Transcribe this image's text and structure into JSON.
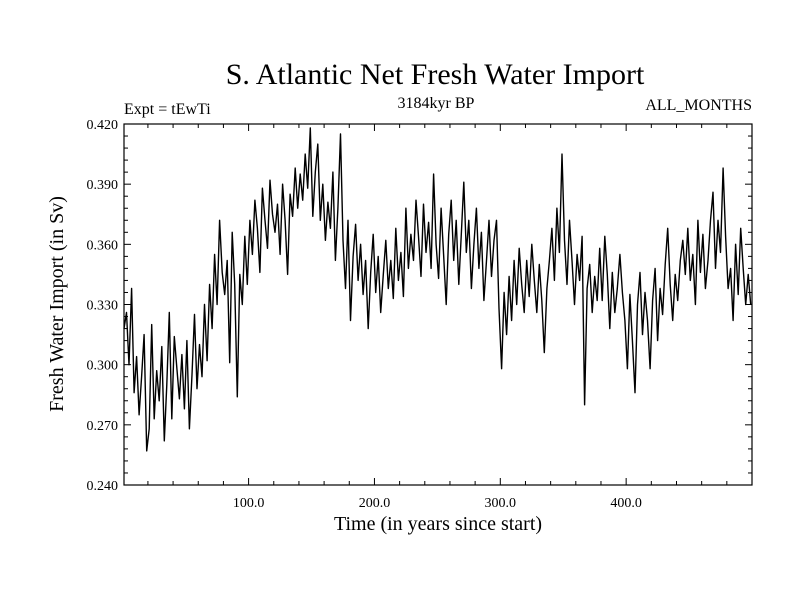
{
  "chart_data": {
    "type": "line",
    "title": "S. Atlantic Net Fresh Water Import",
    "experiment": "Expt = tEwTi",
    "period": "3184kyr BP",
    "months": "ALL_MONTHS",
    "xlabel": "Time (in years since start)",
    "ylabel": "Fresh Water Import (in Sv)",
    "xlim": [
      1,
      500
    ],
    "ylim": [
      0.24,
      0.42
    ],
    "x_ticks": [
      100,
      200,
      300,
      400
    ],
    "x_tick_labels": [
      "100.0",
      "200.0",
      "300.0",
      "400.0"
    ],
    "y_ticks": [
      0.24,
      0.27,
      0.3,
      0.33,
      0.36,
      0.39,
      0.42
    ],
    "y_tick_labels": [
      "0.240",
      "0.270",
      "0.300",
      "0.330",
      "0.360",
      "0.390",
      "0.420"
    ],
    "grid": false,
    "series": [
      {
        "name": "Net Fresh Water Import",
        "x_start": 1,
        "x_step": 2,
        "values": [
          0.318,
          0.326,
          0.3,
          0.338,
          0.286,
          0.304,
          0.275,
          0.294,
          0.315,
          0.257,
          0.268,
          0.32,
          0.273,
          0.297,
          0.282,
          0.309,
          0.262,
          0.29,
          0.326,
          0.273,
          0.314,
          0.298,
          0.283,
          0.305,
          0.278,
          0.312,
          0.268,
          0.295,
          0.325,
          0.288,
          0.31,
          0.294,
          0.33,
          0.302,
          0.34,
          0.318,
          0.355,
          0.33,
          0.372,
          0.346,
          0.335,
          0.352,
          0.301,
          0.366,
          0.34,
          0.284,
          0.345,
          0.33,
          0.364,
          0.34,
          0.372,
          0.355,
          0.382,
          0.368,
          0.346,
          0.388,
          0.372,
          0.358,
          0.392,
          0.375,
          0.366,
          0.38,
          0.355,
          0.39,
          0.372,
          0.345,
          0.385,
          0.374,
          0.398,
          0.378,
          0.395,
          0.382,
          0.405,
          0.388,
          0.418,
          0.374,
          0.396,
          0.41,
          0.372,
          0.39,
          0.362,
          0.381,
          0.368,
          0.396,
          0.352,
          0.378,
          0.415,
          0.362,
          0.338,
          0.372,
          0.322,
          0.354,
          0.37,
          0.342,
          0.36,
          0.335,
          0.352,
          0.318,
          0.346,
          0.365,
          0.336,
          0.354,
          0.326,
          0.345,
          0.362,
          0.338,
          0.352,
          0.333,
          0.368,
          0.342,
          0.356,
          0.334,
          0.378,
          0.348,
          0.365,
          0.352,
          0.382,
          0.364,
          0.344,
          0.38,
          0.356,
          0.371,
          0.348,
          0.395,
          0.36,
          0.343,
          0.378,
          0.354,
          0.33,
          0.365,
          0.382,
          0.352,
          0.372,
          0.34,
          0.365,
          0.391,
          0.356,
          0.372,
          0.338,
          0.36,
          0.378,
          0.348,
          0.366,
          0.332,
          0.352,
          0.372,
          0.344,
          0.362,
          0.372,
          0.328,
          0.298,
          0.336,
          0.315,
          0.344,
          0.322,
          0.352,
          0.33,
          0.358,
          0.34,
          0.326,
          0.352,
          0.334,
          0.36,
          0.342,
          0.326,
          0.35,
          0.332,
          0.306,
          0.338,
          0.352,
          0.368,
          0.342,
          0.378,
          0.356,
          0.405,
          0.362,
          0.34,
          0.372,
          0.352,
          0.33,
          0.355,
          0.342,
          0.364,
          0.28,
          0.338,
          0.35,
          0.326,
          0.344,
          0.332,
          0.358,
          0.332,
          0.364,
          0.345,
          0.318,
          0.346,
          0.326,
          0.338,
          0.355,
          0.336,
          0.322,
          0.298,
          0.335,
          0.312,
          0.286,
          0.33,
          0.346,
          0.315,
          0.336,
          0.322,
          0.298,
          0.332,
          0.348,
          0.312,
          0.338,
          0.325,
          0.35,
          0.368,
          0.34,
          0.322,
          0.345,
          0.332,
          0.352,
          0.362,
          0.345,
          0.368,
          0.342,
          0.355,
          0.33,
          0.372,
          0.346,
          0.365,
          0.338,
          0.352,
          0.372,
          0.386,
          0.348,
          0.372,
          0.356,
          0.398,
          0.364,
          0.338,
          0.348,
          0.322,
          0.36,
          0.335,
          0.368,
          0.348,
          0.33,
          0.345,
          0.33
        ]
      }
    ]
  }
}
